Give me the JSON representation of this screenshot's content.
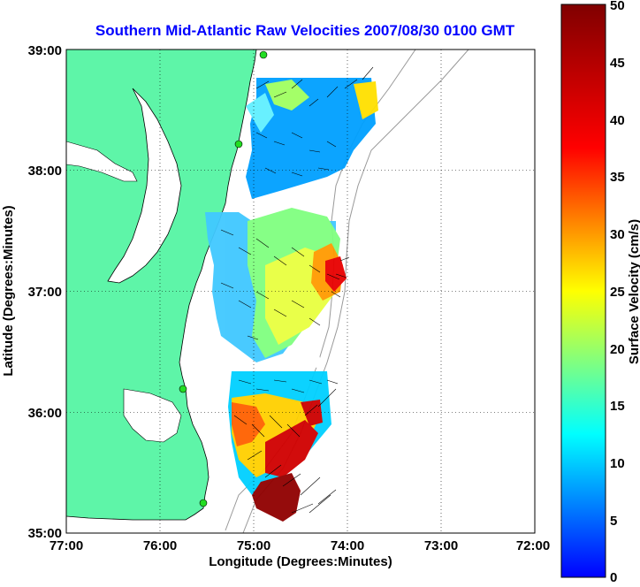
{
  "title": "Southern Mid-Atlantic Raw Velocities 2007/08/30 0100 GMT",
  "title_color": "#0000ff",
  "land_color": "#5ef5a8",
  "chart_data": {
    "type": "map",
    "xlabel": "Longitude (Degrees:Minutes)",
    "ylabel": "Latitude (Degrees:Minutes)",
    "x_ticks": [
      "77:00",
      "76:00",
      "75:00",
      "74:00",
      "73:00",
      "72:00"
    ],
    "y_ticks": [
      "39:00",
      "38:00",
      "37:00",
      "36:00",
      "35:00"
    ],
    "xlim": [
      -77,
      -72
    ],
    "ylim": [
      35,
      39
    ],
    "grid": true,
    "colorbar": {
      "label": "Surface Velocity (cm/s)",
      "ticks": [
        "0",
        "5",
        "10",
        "15",
        "20",
        "25",
        "30",
        "35",
        "40",
        "45",
        "50"
      ],
      "range": [
        0,
        50
      ]
    }
  }
}
